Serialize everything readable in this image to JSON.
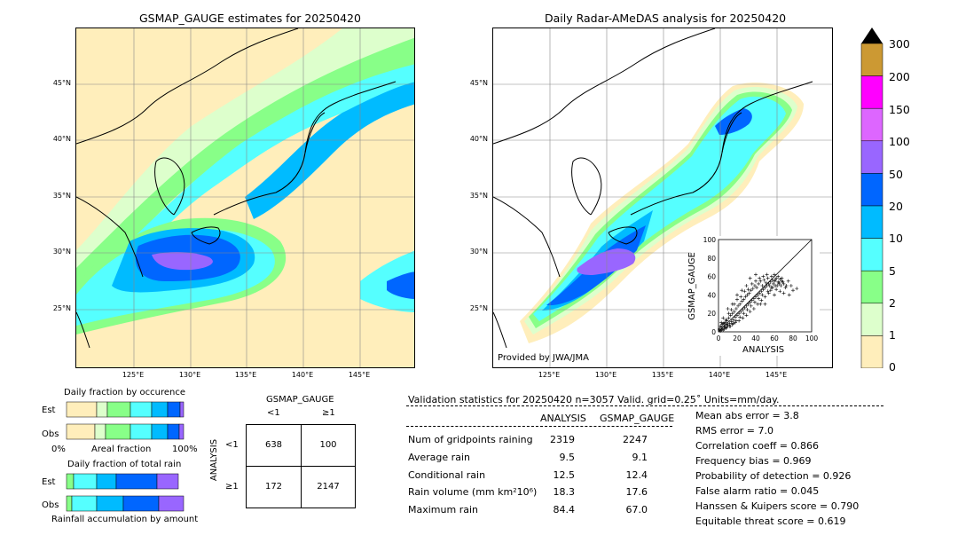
{
  "left_map": {
    "title": "GSMAP_GAUGE estimates for 20250420",
    "lat_labels": [
      "45°N",
      "40°N",
      "35°N",
      "30°N",
      "25°N"
    ],
    "lon_labels": [
      "125°E",
      "130°E",
      "135°E",
      "140°E",
      "145°E"
    ]
  },
  "right_map": {
    "title": "Daily Radar-AMeDAS analysis for 20250420",
    "lat_labels": [
      "45°N",
      "40°N",
      "35°N",
      "30°N",
      "25°N"
    ],
    "lon_labels": [
      "125°E",
      "130°E",
      "135°E",
      "140°E",
      "145°E"
    ],
    "credit": "Provided by JWA/JMA"
  },
  "colorbar": {
    "labels": [
      "300",
      "200",
      "150",
      "100",
      "50",
      "20",
      "10",
      "5",
      "2",
      "1",
      "0"
    ],
    "colors": [
      "#cc9933",
      "#ff00ff",
      "#dd66ff",
      "#9966ff",
      "#0066ff",
      "#00bbff",
      "#55ffff",
      "#88ff88",
      "#ddffcc",
      "#ffeebb"
    ]
  },
  "inset_scatter": {
    "xlabel": "ANALYSIS",
    "ylabel": "GSMAP_GAUGE",
    "ticks": [
      "0",
      "20",
      "40",
      "60",
      "80",
      "100"
    ]
  },
  "occurrence": {
    "title": "Daily fraction by occurence",
    "row_est": "Est",
    "row_obs": "Obs",
    "x_left": "0%",
    "x_mid": "Areal fraction",
    "x_right": "100%"
  },
  "total_rain": {
    "title": "Daily fraction of total rain",
    "row_est": "Est",
    "row_obs": "Obs",
    "xlabel": "Rainfall accumulation by amount"
  },
  "contingency": {
    "col_title": "GSMAP_GAUGE",
    "col_lt": "<1",
    "col_ge": "≥1",
    "row_title": "ANALYSIS",
    "row_lt": "<1",
    "row_ge": "≥1",
    "cells": [
      "638",
      "100",
      "172",
      "2147"
    ]
  },
  "validation": {
    "header": "Validation statistics for 20250420  n=3057 Valid. grid=0.25˚ Units=mm/day.",
    "col_analysis": "ANALYSIS",
    "col_gsmap": "GSMAP_GAUGE",
    "rows": [
      {
        "label": "Num of gridpoints raining",
        "analysis": "2319",
        "gsmap": "2247"
      },
      {
        "label": "Average rain",
        "analysis": "9.5",
        "gsmap": "9.1"
      },
      {
        "label": "Conditional rain",
        "analysis": "12.5",
        "gsmap": "12.4"
      },
      {
        "label": "Rain volume (mm km²10⁶)",
        "analysis": "18.3",
        "gsmap": "17.6"
      },
      {
        "label": "Maximum rain",
        "analysis": "84.4",
        "gsmap": "67.0"
      }
    ],
    "scores": [
      "Mean abs error =    3.8",
      "RMS error =    7.0",
      "Correlation coeff =  0.866",
      "Frequency bias =  0.969",
      "Probability of detection =  0.926",
      "False alarm ratio =  0.045",
      "Hanssen & Kuipers score =  0.790",
      "Equitable threat score =  0.619"
    ]
  },
  "chart_data": {
    "type": "scatter",
    "title": "",
    "xlabel": "ANALYSIS",
    "ylabel": "GSMAP_GAUGE",
    "xlim": [
      0,
      100
    ],
    "ylim": [
      0,
      100
    ],
    "points": [
      [
        2,
        1
      ],
      [
        3,
        5
      ],
      [
        5,
        2
      ],
      [
        4,
        8
      ],
      [
        6,
        6
      ],
      [
        8,
        4
      ],
      [
        7,
        10
      ],
      [
        10,
        7
      ],
      [
        9,
        12
      ],
      [
        12,
        9
      ],
      [
        11,
        15
      ],
      [
        14,
        11
      ],
      [
        13,
        18
      ],
      [
        16,
        13
      ],
      [
        15,
        20
      ],
      [
        18,
        16
      ],
      [
        17,
        22
      ],
      [
        20,
        18
      ],
      [
        19,
        25
      ],
      [
        22,
        20
      ],
      [
        21,
        28
      ],
      [
        24,
        22
      ],
      [
        23,
        30
      ],
      [
        26,
        24
      ],
      [
        25,
        33
      ],
      [
        28,
        26
      ],
      [
        27,
        35
      ],
      [
        30,
        28
      ],
      [
        29,
        38
      ],
      [
        32,
        30
      ],
      [
        31,
        40
      ],
      [
        34,
        32
      ],
      [
        33,
        42
      ],
      [
        36,
        34
      ],
      [
        35,
        45
      ],
      [
        38,
        36
      ],
      [
        37,
        47
      ],
      [
        40,
        38
      ],
      [
        39,
        50
      ],
      [
        42,
        40
      ],
      [
        41,
        48
      ],
      [
        44,
        42
      ],
      [
        43,
        52
      ],
      [
        46,
        44
      ],
      [
        45,
        55
      ],
      [
        48,
        46
      ],
      [
        47,
        50
      ],
      [
        50,
        48
      ],
      [
        49,
        56
      ],
      [
        52,
        50
      ],
      [
        51,
        53
      ],
      [
        54,
        52
      ],
      [
        53,
        58
      ],
      [
        56,
        54
      ],
      [
        55,
        50
      ],
      [
        58,
        56
      ],
      [
        57,
        60
      ],
      [
        60,
        55
      ],
      [
        59,
        52
      ],
      [
        62,
        58
      ],
      [
        61,
        56
      ],
      [
        64,
        54
      ],
      [
        63,
        50
      ],
      [
        66,
        57
      ],
      [
        65,
        53
      ],
      [
        68,
        55
      ],
      [
        67,
        50
      ],
      [
        70,
        52
      ],
      [
        72,
        48
      ],
      [
        75,
        55
      ],
      [
        78,
        50
      ],
      [
        84,
        47
      ],
      [
        1,
        3
      ],
      [
        3,
        2
      ],
      [
        5,
        9
      ],
      [
        6,
        3
      ],
      [
        8,
        13
      ],
      [
        9,
        5
      ],
      [
        11,
        20
      ],
      [
        12,
        6
      ],
      [
        14,
        24
      ],
      [
        15,
        8
      ],
      [
        17,
        30
      ],
      [
        18,
        10
      ],
      [
        20,
        35
      ],
      [
        22,
        12
      ],
      [
        24,
        38
      ],
      [
        26,
        15
      ],
      [
        28,
        44
      ],
      [
        30,
        18
      ],
      [
        32,
        46
      ],
      [
        34,
        22
      ],
      [
        36,
        52
      ],
      [
        38,
        25
      ],
      [
        40,
        55
      ],
      [
        42,
        30
      ],
      [
        44,
        58
      ],
      [
        46,
        34
      ],
      [
        48,
        60
      ],
      [
        50,
        38
      ],
      [
        52,
        62
      ],
      [
        54,
        42
      ],
      [
        56,
        45
      ],
      [
        58,
        48
      ],
      [
        60,
        62
      ],
      [
        62,
        46
      ],
      [
        64,
        60
      ],
      [
        66,
        44
      ],
      [
        68,
        58
      ],
      [
        70,
        42
      ],
      [
        34,
        58
      ],
      [
        40,
        62
      ],
      [
        30,
        50
      ],
      [
        45,
        30
      ],
      [
        50,
        30
      ],
      [
        60,
        40
      ],
      [
        25,
        45
      ],
      [
        20,
        40
      ],
      [
        15,
        30
      ],
      [
        10,
        25
      ],
      [
        5,
        15
      ],
      [
        3,
        10
      ],
      [
        2,
        6
      ],
      [
        1,
        2
      ],
      [
        4,
        3
      ],
      [
        7,
        5
      ],
      [
        6,
        9
      ],
      [
        9,
        8
      ],
      [
        13,
        6
      ],
      [
        16,
        9
      ],
      [
        19,
        12
      ],
      [
        23,
        16
      ],
      [
        27,
        20
      ],
      [
        31,
        24
      ],
      [
        35,
        28
      ],
      [
        39,
        32
      ],
      [
        43,
        36
      ],
      [
        47,
        40
      ],
      [
        53,
        44
      ],
      [
        57,
        48
      ],
      [
        61,
        50
      ],
      [
        65,
        52
      ],
      [
        69,
        54
      ],
      [
        73,
        50
      ],
      [
        80,
        45
      ],
      [
        76,
        40
      ]
    ]
  }
}
